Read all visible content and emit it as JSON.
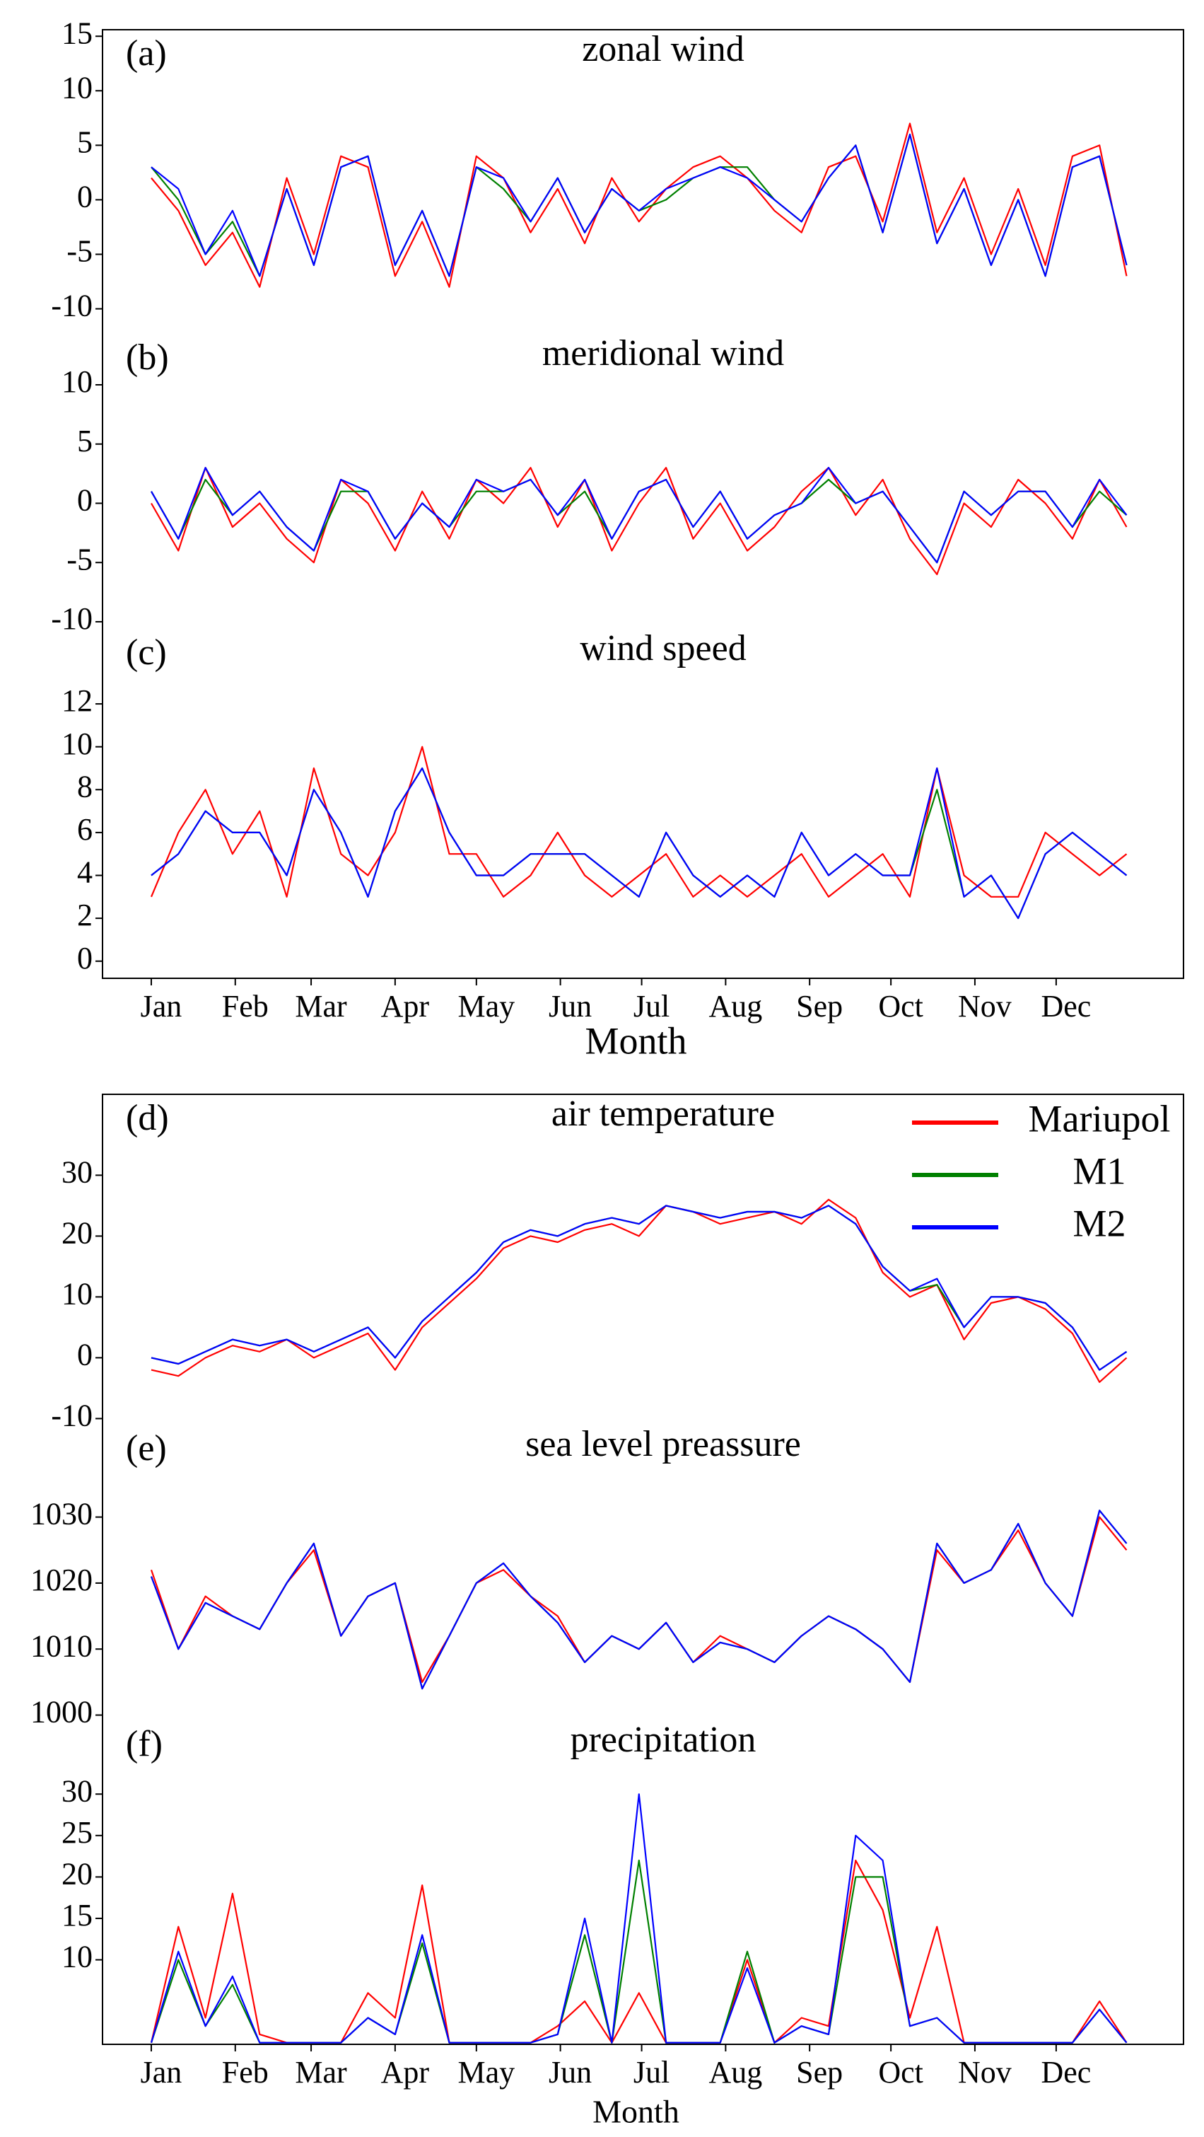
{
  "chart_data": [
    {
      "type": "line",
      "label": "(a)",
      "title": "zonal wind",
      "x": [
        1,
        11,
        21,
        31,
        41,
        51,
        61,
        71,
        81,
        91,
        101,
        111,
        121,
        131,
        141,
        151,
        161,
        171,
        181,
        191,
        201,
        211,
        221,
        231,
        241,
        251,
        261,
        271,
        281,
        291,
        301,
        311,
        321,
        331,
        341,
        351,
        361
      ],
      "xlim": [
        -17,
        382
      ],
      "ylim": [
        -12.3,
        15.6
      ],
      "yticks": [
        -10,
        -5,
        0,
        5,
        10,
        15
      ],
      "series": [
        {
          "name": "Mariupol",
          "color": "#ff0000",
          "values": [
            2,
            -1,
            -6,
            -3,
            -8,
            2,
            -5,
            4,
            3,
            -7,
            -2,
            -8,
            4,
            2,
            -3,
            1,
            -4,
            2,
            -2,
            1,
            3,
            4,
            2,
            -1,
            -3,
            3,
            4,
            -2,
            7,
            -3,
            2,
            -5,
            1,
            -6,
            4,
            5,
            -7
          ]
        },
        {
          "name": "M1",
          "color": "#008000",
          "values": [
            3,
            0,
            -5,
            -2,
            -7,
            1,
            -6,
            3,
            4,
            -6,
            -1,
            -7,
            3,
            1,
            -2,
            2,
            -3,
            1,
            -1,
            0,
            2,
            3,
            3,
            0,
            -2,
            2,
            5,
            -3,
            6,
            -4,
            1,
            -6,
            0,
            -7,
            3,
            4,
            -6
          ]
        },
        {
          "name": "M2",
          "color": "#0000ff",
          "values": [
            3,
            1,
            -5,
            -1,
            -7,
            1,
            -6,
            3,
            4,
            -6,
            -1,
            -7,
            3,
            2,
            -2,
            2,
            -3,
            1,
            -1,
            1,
            2,
            3,
            2,
            0,
            -2,
            2,
            5,
            -3,
            6,
            -4,
            1,
            -6,
            0,
            -7,
            3,
            4,
            -6
          ]
        }
      ]
    },
    {
      "type": "line",
      "label": "(b)",
      "title": "meridional wind",
      "x": [
        1,
        11,
        21,
        31,
        41,
        51,
        61,
        71,
        81,
        91,
        101,
        111,
        121,
        131,
        141,
        151,
        161,
        171,
        181,
        191,
        201,
        211,
        221,
        231,
        241,
        251,
        261,
        271,
        281,
        291,
        301,
        311,
        321,
        331,
        341,
        351,
        361
      ],
      "xlim": [
        -17,
        382
      ],
      "ylim": [
        -10.6,
        14.3
      ],
      "yticks": [
        -10,
        -5,
        0,
        5,
        10
      ],
      "series": [
        {
          "name": "Mariupol",
          "color": "#ff0000",
          "values": [
            0,
            -4,
            3,
            -2,
            0,
            -3,
            -5,
            2,
            0,
            -4,
            1,
            -3,
            2,
            0,
            3,
            -2,
            2,
            -4,
            0,
            3,
            -3,
            0,
            -4,
            -2,
            1,
            3,
            -1,
            2,
            -3,
            -6,
            0,
            -2,
            2,
            0,
            -3,
            2,
            -2
          ]
        },
        {
          "name": "M1",
          "color": "#008000",
          "values": [
            1,
            -3,
            2,
            -1,
            1,
            -2,
            -4,
            1,
            1,
            -3,
            0,
            -2,
            1,
            1,
            2,
            -1,
            1,
            -3,
            1,
            2,
            -2,
            1,
            -3,
            -1,
            0,
            2,
            0,
            1,
            -2,
            -5,
            1,
            -1,
            1,
            1,
            -2,
            1,
            -1
          ]
        },
        {
          "name": "M2",
          "color": "#0000ff",
          "values": [
            1,
            -3,
            3,
            -1,
            1,
            -2,
            -4,
            2,
            1,
            -3,
            0,
            -2,
            2,
            1,
            2,
            -1,
            2,
            -3,
            1,
            2,
            -2,
            1,
            -3,
            -1,
            0,
            3,
            0,
            1,
            -2,
            -5,
            1,
            -1,
            1,
            1,
            -2,
            2,
            -1
          ]
        }
      ]
    },
    {
      "type": "line",
      "label": "(c)",
      "title": "wind speed",
      "xlabel": "Month",
      "x": [
        1,
        11,
        21,
        31,
        41,
        51,
        61,
        71,
        81,
        91,
        101,
        111,
        121,
        131,
        141,
        151,
        161,
        171,
        181,
        191,
        201,
        211,
        221,
        231,
        241,
        251,
        261,
        271,
        281,
        291,
        301,
        311,
        321,
        331,
        341,
        351,
        361
      ],
      "xlim": [
        -17,
        382
      ],
      "ylim": [
        -0.8,
        15.5
      ],
      "yticks": [
        0,
        2,
        4,
        6,
        8,
        10,
        12
      ],
      "xticks": [
        {
          "value": 1,
          "label": "Jan"
        },
        {
          "value": 32,
          "label": "Feb"
        },
        {
          "value": 60,
          "label": "Mar"
        },
        {
          "value": 91,
          "label": "Apr"
        },
        {
          "value": 121,
          "label": "May"
        },
        {
          "value": 152,
          "label": "Jun"
        },
        {
          "value": 182,
          "label": "Jul"
        },
        {
          "value": 213,
          "label": "Aug"
        },
        {
          "value": 244,
          "label": "Sep"
        },
        {
          "value": 274,
          "label": "Oct"
        },
        {
          "value": 305,
          "label": "Nov"
        },
        {
          "value": 335,
          "label": "Dec"
        }
      ],
      "series": [
        {
          "name": "Mariupol",
          "color": "#ff0000",
          "values": [
            3,
            6,
            8,
            5,
            7,
            3,
            9,
            5,
            4,
            6,
            10,
            5,
            5,
            3,
            4,
            6,
            4,
            3,
            4,
            5,
            3,
            4,
            3,
            4,
            5,
            3,
            4,
            5,
            3,
            9,
            4,
            3,
            3,
            6,
            5,
            4,
            5
          ]
        },
        {
          "name": "M1",
          "color": "#008000",
          "values": [
            4,
            5,
            7,
            6,
            6,
            4,
            8,
            6,
            3,
            7,
            9,
            6,
            4,
            4,
            5,
            5,
            5,
            4,
            3,
            6,
            4,
            3,
            4,
            3,
            6,
            4,
            5,
            4,
            4,
            8,
            3,
            4,
            2,
            5,
            6,
            5,
            4
          ]
        },
        {
          "name": "M2",
          "color": "#0000ff",
          "values": [
            4,
            5,
            7,
            6,
            6,
            4,
            8,
            6,
            3,
            7,
            9,
            6,
            4,
            4,
            5,
            5,
            5,
            4,
            3,
            6,
            4,
            3,
            4,
            3,
            6,
            4,
            5,
            4,
            4,
            9,
            3,
            4,
            2,
            5,
            6,
            5,
            4
          ]
        }
      ]
    },
    {
      "type": "line",
      "label": "(d)",
      "title": "air temperature",
      "legend": "upper right",
      "x": [
        1,
        11,
        21,
        31,
        41,
        51,
        61,
        71,
        81,
        91,
        101,
        111,
        121,
        131,
        141,
        151,
        161,
        171,
        181,
        191,
        201,
        211,
        221,
        231,
        241,
        251,
        261,
        271,
        281,
        291,
        301,
        311,
        321,
        331,
        341,
        351,
        361
      ],
      "xlim": [
        -17,
        382
      ],
      "ylim": [
        -11,
        43.3
      ],
      "yticks": [
        -10,
        0,
        10,
        20,
        30
      ],
      "series": [
        {
          "name": "Mariupol",
          "color": "#ff0000",
          "values": [
            -2,
            -3,
            0,
            2,
            1,
            3,
            0,
            2,
            4,
            -2,
            5,
            9,
            13,
            18,
            20,
            19,
            21,
            22,
            20,
            25,
            24,
            22,
            23,
            24,
            22,
            26,
            23,
            14,
            10,
            12,
            3,
            9,
            10,
            8,
            4,
            -4,
            0
          ]
        },
        {
          "name": "M1",
          "color": "#008000",
          "values": [
            0,
            -1,
            1,
            3,
            2,
            3,
            1,
            3,
            5,
            0,
            6,
            10,
            14,
            19,
            21,
            20,
            22,
            23,
            22,
            25,
            24,
            23,
            24,
            24,
            23,
            25,
            22,
            15,
            11,
            12,
            5,
            10,
            10,
            9,
            5,
            -2,
            1
          ]
        },
        {
          "name": "M2",
          "color": "#0000ff",
          "values": [
            0,
            -1,
            1,
            3,
            2,
            3,
            1,
            3,
            5,
            0,
            6,
            10,
            14,
            19,
            21,
            20,
            22,
            23,
            22,
            25,
            24,
            23,
            24,
            24,
            23,
            25,
            22,
            15,
            11,
            13,
            5,
            10,
            10,
            9,
            5,
            -2,
            1
          ]
        }
      ]
    },
    {
      "type": "line",
      "label": "(e)",
      "title": "sea level preassure",
      "x": [
        1,
        11,
        21,
        31,
        41,
        51,
        61,
        71,
        81,
        91,
        101,
        111,
        121,
        131,
        141,
        151,
        161,
        171,
        181,
        191,
        201,
        211,
        221,
        231,
        241,
        251,
        261,
        271,
        281,
        291,
        301,
        311,
        321,
        331,
        341,
        351,
        361
      ],
      "xlim": [
        -17,
        382
      ],
      "ylim": [
        999.2,
        1044
      ],
      "yticks": [
        1000,
        1010,
        1020,
        1030
      ],
      "series": [
        {
          "name": "Mariupol",
          "color": "#ff0000",
          "values": [
            1022,
            1010,
            1018,
            1015,
            1013,
            1020,
            1025,
            1012,
            1018,
            1020,
            1005,
            1012,
            1020,
            1022,
            1018,
            1015,
            1008,
            1012,
            1010,
            1014,
            1008,
            1012,
            1010,
            1008,
            1012,
            1015,
            1013,
            1010,
            1005,
            1025,
            1020,
            1022,
            1028,
            1020,
            1015,
            1030,
            1025
          ]
        },
        {
          "name": "M1",
          "color": "#008000",
          "values": [
            1021,
            1010,
            1017,
            1015,
            1013,
            1020,
            1026,
            1012,
            1018,
            1020,
            1004,
            1012,
            1020,
            1023,
            1018,
            1014,
            1008,
            1012,
            1010,
            1014,
            1008,
            1011,
            1010,
            1008,
            1012,
            1015,
            1013,
            1010,
            1005,
            1026,
            1020,
            1022,
            1029,
            1020,
            1015,
            1031,
            1026
          ]
        },
        {
          "name": "M2",
          "color": "#0000ff",
          "values": [
            1021,
            1010,
            1017,
            1015,
            1013,
            1020,
            1026,
            1012,
            1018,
            1020,
            1004,
            1012,
            1020,
            1023,
            1018,
            1014,
            1008,
            1012,
            1010,
            1014,
            1008,
            1011,
            1010,
            1008,
            1012,
            1015,
            1013,
            1010,
            1005,
            1026,
            1020,
            1022,
            1029,
            1020,
            1015,
            1031,
            1026
          ]
        }
      ]
    },
    {
      "type": "line",
      "label": "(f)",
      "title": "precipitation",
      "xlabel": "Month",
      "x": [
        1,
        11,
        21,
        31,
        41,
        51,
        61,
        71,
        81,
        91,
        101,
        111,
        121,
        131,
        141,
        151,
        161,
        171,
        181,
        191,
        201,
        211,
        221,
        231,
        241,
        251,
        261,
        271,
        281,
        291,
        301,
        311,
        321,
        331,
        341,
        351,
        361
      ],
      "xlim": [
        -17,
        382
      ],
      "ylim": [
        -0.2,
        38.9
      ],
      "yticks": [
        10,
        15,
        20,
        25,
        30
      ],
      "xticks": [
        {
          "value": 1,
          "label": "Jan"
        },
        {
          "value": 32,
          "label": "Feb"
        },
        {
          "value": 60,
          "label": "Mar"
        },
        {
          "value": 91,
          "label": "Apr"
        },
        {
          "value": 121,
          "label": "May"
        },
        {
          "value": 152,
          "label": "Jun"
        },
        {
          "value": 182,
          "label": "Jul"
        },
        {
          "value": 213,
          "label": "Aug"
        },
        {
          "value": 244,
          "label": "Sep"
        },
        {
          "value": 274,
          "label": "Oct"
        },
        {
          "value": 305,
          "label": "Nov"
        },
        {
          "value": 335,
          "label": "Dec"
        }
      ],
      "series": [
        {
          "name": "Mariupol",
          "color": "#ff0000",
          "values": [
            0,
            14,
            3,
            18,
            1,
            0,
            0,
            0,
            6,
            3,
            19,
            0,
            0,
            0,
            0,
            2,
            5,
            0,
            6,
            0,
            0,
            0,
            10,
            0,
            3,
            2,
            22,
            16,
            3,
            14,
            0,
            0,
            0,
            0,
            0,
            5,
            0
          ]
        },
        {
          "name": "M1",
          "color": "#008000",
          "values": [
            0,
            10,
            2,
            7,
            0,
            0,
            0,
            0,
            3,
            1,
            12,
            0,
            0,
            0,
            0,
            1,
            13,
            0,
            22,
            0,
            0,
            0,
            11,
            0,
            2,
            1,
            20,
            20,
            2,
            3,
            0,
            0,
            0,
            0,
            0,
            4,
            0
          ]
        },
        {
          "name": "M2",
          "color": "#0000ff",
          "values": [
            0,
            11,
            2,
            8,
            0,
            0,
            0,
            0,
            3,
            1,
            13,
            0,
            0,
            0,
            0,
            1,
            15,
            0,
            30,
            0,
            0,
            0,
            9,
            0,
            2,
            1,
            25,
            22,
            2,
            3,
            0,
            0,
            0,
            0,
            0,
            4,
            0
          ]
        }
      ]
    }
  ]
}
